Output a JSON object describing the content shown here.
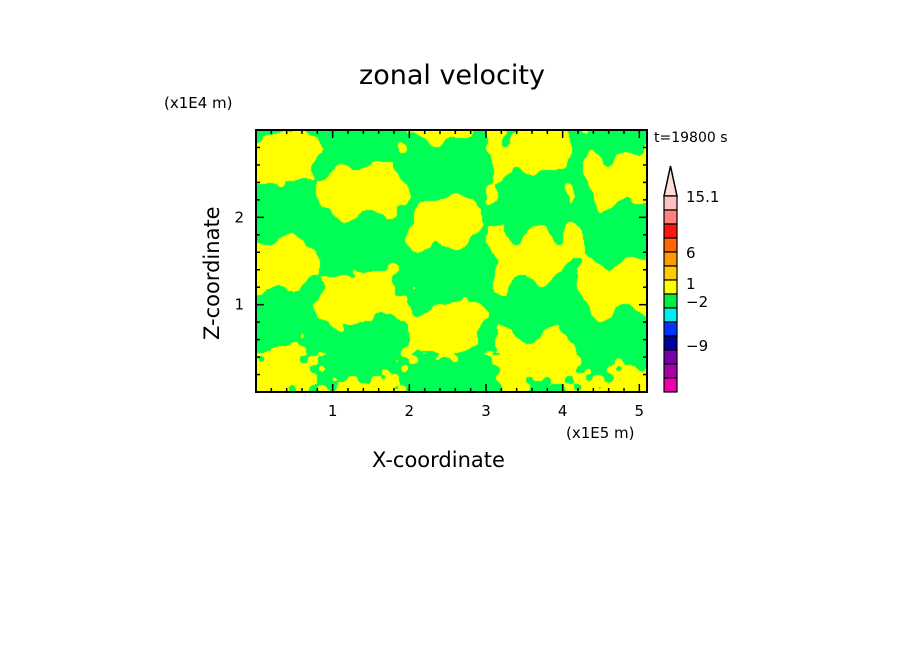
{
  "chart_data": {
    "type": "heatmap",
    "title": "zonal velocity",
    "xlabel": "X-coordinate",
    "ylabel": "Z-coordinate",
    "x_unit": "(x1E5 m)",
    "y_unit": "(x1E4 m)",
    "time_label": "t=19800 s",
    "xlim": [
      0,
      5.1
    ],
    "ylim": [
      0,
      3.0
    ],
    "x_ticks": [
      1,
      2,
      3,
      4,
      5
    ],
    "y_ticks": [
      1,
      2
    ],
    "colorbar": {
      "labels": [
        {
          "value": "15.1",
          "level": 15.1
        },
        {
          "value": "6",
          "level": 6
        },
        {
          "value": "1",
          "level": 1
        },
        {
          "value": "-2",
          "level": -2
        },
        {
          "value": "-9",
          "level": -9
        }
      ],
      "extend_color": "#ffdcd8",
      "colors": [
        "#ffc0c0",
        "#ff8080",
        "#ff1414",
        "#ff6600",
        "#ff9900",
        "#ffcc00",
        "#ffff00",
        "#00ee44",
        "#00eeee",
        "#0033ff",
        "#0000a0",
        "#7700aa",
        "#aa00aa",
        "#ee00aa"
      ]
    },
    "dominant_colors": {
      "positive_small": "#ffff00",
      "negative_small": "#00ff55"
    }
  }
}
